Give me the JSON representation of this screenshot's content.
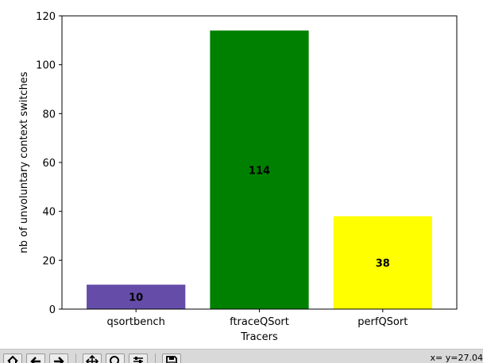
{
  "chart_data": {
    "type": "bar",
    "title": "",
    "xlabel": "Tracers",
    "ylabel": "nb of unvoluntary context switches",
    "categories": [
      "qsortbench",
      "ftraceQSort",
      "perfQSort"
    ],
    "values": [
      10,
      114,
      38
    ],
    "data_labels": [
      "10",
      "114",
      "38"
    ],
    "colors": [
      "#654ca8",
      "#008000",
      "#ffff00"
    ],
    "ylim": [
      0,
      120
    ],
    "yticks": [
      0,
      20,
      40,
      60,
      80,
      100,
      120
    ],
    "ytick_labels": [
      "0",
      "20",
      "40",
      "60",
      "80",
      "100",
      "120"
    ],
    "grid": false,
    "legend": "none"
  },
  "toolbar": {
    "buttons": [
      {
        "name": "home-button",
        "icon": "home-icon"
      },
      {
        "name": "back-button",
        "icon": "arrow-left-icon"
      },
      {
        "name": "forward-button",
        "icon": "arrow-right-icon"
      },
      {
        "name": "pan-button",
        "icon": "pan-move-icon"
      },
      {
        "name": "zoom-button",
        "icon": "zoom-magnifier-icon"
      },
      {
        "name": "subplots-button",
        "icon": "subplots-config-icon"
      },
      {
        "name": "save-button",
        "icon": "floppy-save-icon"
      }
    ],
    "coordinates": "x=  y=27.04"
  }
}
